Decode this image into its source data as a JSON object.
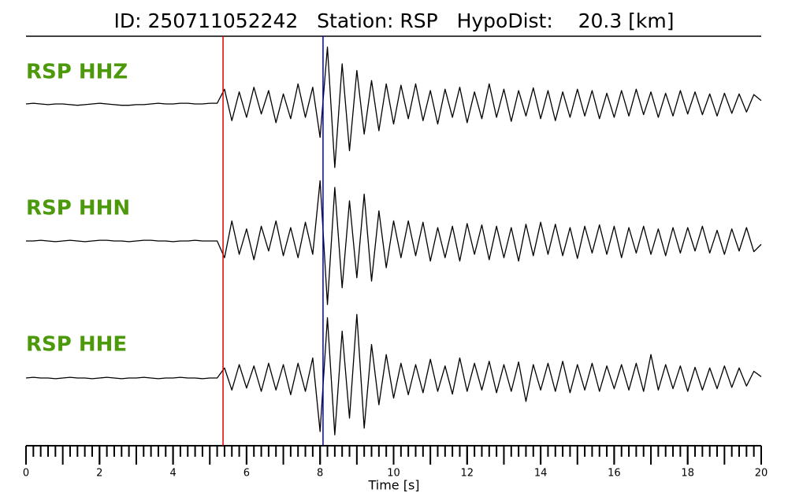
{
  "chart_data": {
    "type": "seismogram",
    "title": "ID: 250711052242   Station: RSP   HypoDist:    20.3 [km]",
    "xlabel": "Time [s]",
    "xlim": [
      0,
      20
    ],
    "xticks": [
      0,
      2,
      4,
      6,
      8,
      10,
      12,
      14,
      16,
      18,
      20
    ],
    "xminorticks": [
      0,
      0.2,
      0.4,
      0.6,
      0.8,
      1,
      1.2,
      1.4,
      1.6,
      1.8,
      2,
      2.2,
      2.4,
      2.6,
      2.8,
      3,
      3.2,
      3.4,
      3.6,
      3.8,
      4,
      4.2,
      4.4,
      4.6,
      4.8,
      5,
      5.2,
      5.4,
      5.6,
      5.8,
      6,
      6.2,
      6.4,
      6.6,
      6.8,
      7,
      7.2,
      7.4,
      7.6,
      7.8,
      8,
      8.2,
      8.4,
      8.6,
      8.8,
      9,
      9.2,
      9.4,
      9.6,
      9.8,
      10,
      10.2,
      10.4,
      10.6,
      10.8,
      11,
      11.2,
      11.4,
      11.6,
      11.8,
      12,
      12.2,
      12.4,
      12.6,
      12.8,
      13,
      13.2,
      13.4,
      13.6,
      13.8,
      14,
      14.2,
      14.4,
      14.6,
      14.8,
      15,
      15.2,
      15.4,
      15.6,
      15.8,
      16,
      16.2,
      16.4,
      16.6,
      16.8,
      17,
      17.2,
      17.4,
      17.6,
      17.8,
      18,
      18.2,
      18.4,
      18.6,
      18.8,
      19,
      19.2,
      19.4,
      19.6,
      19.8,
      20
    ],
    "ylim": [
      -1,
      1
    ],
    "label_color": "#4c9a0c",
    "picks": [
      {
        "value": 5.36,
        "color": "#e00000"
      },
      {
        "value": 8.08,
        "color": "#0000c0"
      }
    ],
    "x": [
      0,
      0.2,
      0.4,
      0.6,
      0.8,
      1,
      1.2,
      1.4,
      1.6,
      1.8,
      2,
      2.2,
      2.4,
      2.6,
      2.8,
      3,
      3.2,
      3.4,
      3.6,
      3.8,
      4,
      4.2,
      4.4,
      4.6,
      4.8,
      5,
      5.2,
      5.4,
      5.6,
      5.8,
      6,
      6.2,
      6.4,
      6.6,
      6.8,
      7,
      7.2,
      7.4,
      7.6,
      7.8,
      8,
      8.2,
      8.4,
      8.6,
      8.8,
      9,
      9.2,
      9.4,
      9.6,
      9.8,
      10,
      10.2,
      10.4,
      10.6,
      10.8,
      11,
      11.2,
      11.4,
      11.6,
      11.8,
      12,
      12.2,
      12.4,
      12.6,
      12.8,
      13,
      13.2,
      13.4,
      13.6,
      13.8,
      14,
      14.2,
      14.4,
      14.6,
      14.8,
      15,
      15.2,
      15.4,
      15.6,
      15.8,
      16,
      16.2,
      16.4,
      16.6,
      16.8,
      17,
      17.2,
      17.4,
      17.6,
      17.8,
      18,
      18.2,
      18.4,
      18.6,
      18.8,
      19,
      19.2,
      19.4,
      19.6,
      19.8,
      20
    ],
    "series": [
      {
        "name": "RSP HHZ",
        "color": "#000000",
        "values": [
          0,
          0.01,
          0,
          -0.01,
          0,
          0,
          -0.01,
          -0.02,
          -0.01,
          0,
          0.01,
          0,
          -0.01,
          -0.02,
          -0.02,
          -0.01,
          -0.01,
          0,
          0.01,
          0,
          0,
          0.01,
          0.01,
          0,
          0,
          0.01,
          0.01,
          0.22,
          -0.25,
          0.18,
          -0.2,
          0.25,
          -0.15,
          0.2,
          -0.28,
          0.15,
          -0.22,
          0.3,
          -0.2,
          0.25,
          -0.5,
          0.85,
          -0.95,
          0.6,
          -0.7,
          0.5,
          -0.45,
          0.35,
          -0.4,
          0.3,
          -0.3,
          0.28,
          -0.22,
          0.3,
          -0.25,
          0.2,
          -0.3,
          0.22,
          -0.2,
          0.25,
          -0.28,
          0.18,
          -0.22,
          0.3,
          -0.2,
          0.22,
          -0.26,
          0.2,
          -0.18,
          0.24,
          -0.22,
          0.2,
          -0.25,
          0.18,
          -0.2,
          0.22,
          -0.18,
          0.2,
          -0.22,
          0.16,
          -0.2,
          0.2,
          -0.18,
          0.22,
          -0.16,
          0.18,
          -0.2,
          0.16,
          -0.18,
          0.2,
          -0.15,
          0.18,
          -0.16,
          0.15,
          -0.18,
          0.16,
          -0.14,
          0.15,
          -0.12,
          0.14,
          0.05
        ]
      },
      {
        "name": "RSP HHN",
        "color": "#000000",
        "values": [
          0,
          0,
          0.01,
          0,
          -0.01,
          0,
          0.01,
          0,
          -0.01,
          0,
          0.01,
          0.01,
          0,
          0,
          -0.01,
          0,
          0.01,
          0.01,
          0,
          0,
          -0.01,
          0,
          0,
          0.01,
          0,
          0,
          0,
          -0.25,
          0.3,
          -0.2,
          0.18,
          -0.28,
          0.22,
          -0.15,
          0.3,
          -0.22,
          0.2,
          -0.25,
          0.28,
          -0.2,
          0.9,
          -0.95,
          0.8,
          -0.7,
          0.6,
          -0.55,
          0.7,
          -0.6,
          0.45,
          -0.4,
          0.3,
          -0.25,
          0.3,
          -0.22,
          0.28,
          -0.3,
          0.2,
          -0.25,
          0.22,
          -0.3,
          0.26,
          -0.2,
          0.24,
          -0.28,
          0.22,
          -0.25,
          0.2,
          -0.3,
          0.25,
          -0.22,
          0.28,
          -0.2,
          0.25,
          -0.22,
          0.2,
          -0.26,
          0.22,
          -0.18,
          0.24,
          -0.2,
          0.22,
          -0.25,
          0.2,
          -0.18,
          0.22,
          -0.2,
          0.18,
          -0.22,
          0.2,
          -0.18,
          0.2,
          -0.15,
          0.22,
          -0.18,
          0.16,
          -0.2,
          0.18,
          -0.15,
          0.2,
          -0.16,
          -0.05
        ]
      },
      {
        "name": "RSP HHE",
        "color": "#000000",
        "values": [
          0,
          0.01,
          0,
          0,
          -0.01,
          0,
          0.01,
          0,
          0,
          -0.01,
          0,
          0.01,
          0,
          -0.01,
          0,
          0,
          0.01,
          0,
          -0.01,
          0,
          0,
          0.01,
          0,
          0,
          -0.01,
          0,
          0,
          0.15,
          -0.18,
          0.2,
          -0.15,
          0.18,
          -0.2,
          0.22,
          -0.18,
          0.2,
          -0.25,
          0.22,
          -0.2,
          0.3,
          -0.8,
          0.9,
          -0.85,
          0.7,
          -0.6,
          0.95,
          -0.75,
          0.5,
          -0.4,
          0.35,
          -0.3,
          0.22,
          -0.25,
          0.2,
          -0.22,
          0.28,
          -0.2,
          0.18,
          -0.24,
          0.3,
          -0.2,
          0.22,
          -0.18,
          0.25,
          -0.22,
          0.2,
          -0.2,
          0.24,
          -0.35,
          0.2,
          -0.18,
          0.22,
          -0.2,
          0.25,
          -0.22,
          0.2,
          -0.18,
          0.22,
          -0.2,
          0.18,
          -0.16,
          0.2,
          -0.18,
          0.22,
          -0.2,
          0.35,
          -0.18,
          0.2,
          -0.16,
          0.18,
          -0.2,
          0.16,
          -0.18,
          0.15,
          -0.16,
          0.18,
          -0.14,
          0.15,
          -0.12,
          0.1,
          0.02
        ]
      }
    ]
  }
}
